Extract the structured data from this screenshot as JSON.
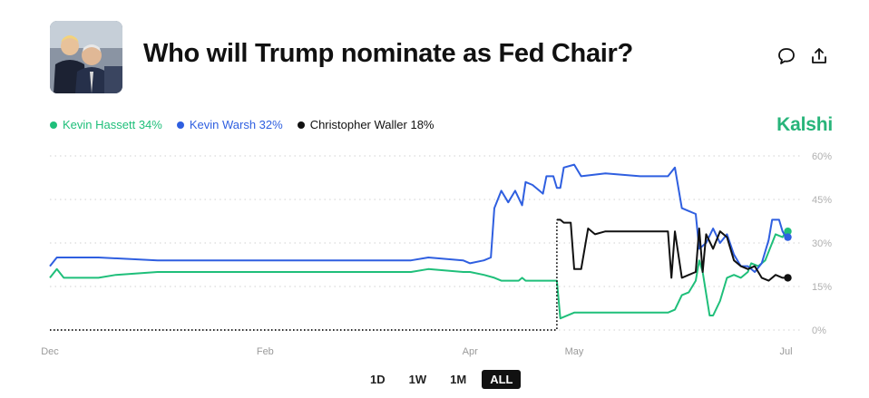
{
  "header": {
    "title": "Who will Trump nominate as Fed Chair?",
    "icons": [
      "comment-icon",
      "share-icon"
    ]
  },
  "brand": "Kalshi",
  "legend": [
    {
      "label": "Kevin Hassett 34%",
      "color": "#1fbf7a"
    },
    {
      "label": "Kevin Warsh 32%",
      "color": "#2f5fe0"
    },
    {
      "label": "Christopher Waller 18%",
      "color": "#111111"
    }
  ],
  "range_tabs": [
    "1D",
    "1W",
    "1M",
    "ALL"
  ],
  "active_range": "ALL",
  "chart_data": {
    "type": "line",
    "x_axis": {
      "range": [
        "2024-12-01",
        "2025-07-04"
      ],
      "tick_labels": [
        "Dec",
        "Feb",
        "Apr",
        "May",
        "Jul"
      ],
      "tick_dates": [
        "2024-12-01",
        "2025-02-01",
        "2025-04-01",
        "2025-05-01",
        "2025-07-01"
      ]
    },
    "y_axis": {
      "range": [
        0,
        60
      ],
      "ticks": [
        0,
        15,
        30,
        45,
        60
      ],
      "tick_labels": [
        "0%",
        "15%",
        "30%",
        "45%",
        "60%"
      ],
      "position": "right"
    },
    "grid": "horizontal-dotted",
    "series": [
      {
        "name": "Kevin Hassett",
        "color": "#1fbf7a",
        "end_value": 34,
        "points": [
          [
            "2024-12-01",
            18
          ],
          [
            "2024-12-03",
            21
          ],
          [
            "2024-12-05",
            18
          ],
          [
            "2024-12-15",
            18
          ],
          [
            "2024-12-20",
            19
          ],
          [
            "2025-01-01",
            20
          ],
          [
            "2025-01-20",
            20
          ],
          [
            "2025-02-01",
            20
          ],
          [
            "2025-02-20",
            20
          ],
          [
            "2025-03-01",
            20
          ],
          [
            "2025-03-15",
            20
          ],
          [
            "2025-03-20",
            21
          ],
          [
            "2025-03-30",
            20
          ],
          [
            "2025-04-01",
            20
          ],
          [
            "2025-04-05",
            19
          ],
          [
            "2025-04-08",
            18
          ],
          [
            "2025-04-10",
            17
          ],
          [
            "2025-04-15",
            17
          ],
          [
            "2025-04-16",
            18
          ],
          [
            "2025-04-17",
            17
          ],
          [
            "2025-04-25",
            17
          ],
          [
            "2025-04-26",
            17
          ],
          [
            "2025-04-27",
            4
          ],
          [
            "2025-05-01",
            6
          ],
          [
            "2025-05-10",
            6
          ],
          [
            "2025-05-20",
            6
          ],
          [
            "2025-05-28",
            6
          ],
          [
            "2025-05-30",
            7
          ],
          [
            "2025-06-01",
            12
          ],
          [
            "2025-06-03",
            13
          ],
          [
            "2025-06-05",
            17
          ],
          [
            "2025-06-06",
            24
          ],
          [
            "2025-06-07",
            20
          ],
          [
            "2025-06-09",
            5
          ],
          [
            "2025-06-10",
            5
          ],
          [
            "2025-06-12",
            10
          ],
          [
            "2025-06-14",
            18
          ],
          [
            "2025-06-16",
            19
          ],
          [
            "2025-06-18",
            18
          ],
          [
            "2025-06-20",
            20
          ],
          [
            "2025-06-21",
            23
          ],
          [
            "2025-06-23",
            22
          ],
          [
            "2025-06-25",
            24
          ],
          [
            "2025-06-27",
            30
          ],
          [
            "2025-06-28",
            33
          ],
          [
            "2025-06-30",
            32
          ],
          [
            "2025-07-01",
            34
          ]
        ]
      },
      {
        "name": "Kevin Warsh",
        "color": "#2f5fe0",
        "end_value": 32,
        "points": [
          [
            "2024-12-01",
            22
          ],
          [
            "2024-12-03",
            25
          ],
          [
            "2024-12-15",
            25
          ],
          [
            "2025-01-01",
            24
          ],
          [
            "2025-01-20",
            24
          ],
          [
            "2025-02-01",
            24
          ],
          [
            "2025-02-20",
            24
          ],
          [
            "2025-03-01",
            24
          ],
          [
            "2025-03-15",
            24
          ],
          [
            "2025-03-20",
            25
          ],
          [
            "2025-03-30",
            24
          ],
          [
            "2025-04-01",
            23
          ],
          [
            "2025-04-05",
            24
          ],
          [
            "2025-04-07",
            25
          ],
          [
            "2025-04-08",
            42
          ],
          [
            "2025-04-10",
            48
          ],
          [
            "2025-04-12",
            44
          ],
          [
            "2025-04-14",
            48
          ],
          [
            "2025-04-16",
            43
          ],
          [
            "2025-04-17",
            51
          ],
          [
            "2025-04-19",
            50
          ],
          [
            "2025-04-21",
            48
          ],
          [
            "2025-04-22",
            47
          ],
          [
            "2025-04-23",
            53
          ],
          [
            "2025-04-25",
            53
          ],
          [
            "2025-04-26",
            49
          ],
          [
            "2025-04-27",
            49
          ],
          [
            "2025-04-28",
            56
          ],
          [
            "2025-05-01",
            57
          ],
          [
            "2025-05-03",
            53
          ],
          [
            "2025-05-10",
            54
          ],
          [
            "2025-05-20",
            53
          ],
          [
            "2025-05-28",
            53
          ],
          [
            "2025-05-30",
            56
          ],
          [
            "2025-06-01",
            42
          ],
          [
            "2025-06-03",
            41
          ],
          [
            "2025-06-05",
            40
          ],
          [
            "2025-06-06",
            28
          ],
          [
            "2025-06-08",
            30
          ],
          [
            "2025-06-10",
            35
          ],
          [
            "2025-06-12",
            30
          ],
          [
            "2025-06-14",
            33
          ],
          [
            "2025-06-16",
            26
          ],
          [
            "2025-06-18",
            22
          ],
          [
            "2025-06-20",
            22
          ],
          [
            "2025-06-22",
            20
          ],
          [
            "2025-06-24",
            23
          ],
          [
            "2025-06-26",
            31
          ],
          [
            "2025-06-27",
            38
          ],
          [
            "2025-06-29",
            38
          ],
          [
            "2025-06-30",
            34
          ],
          [
            "2025-07-01",
            32
          ]
        ]
      },
      {
        "name": "Christopher Waller",
        "color": "#111111",
        "end_value": 18,
        "dotted_segment_end": "2025-04-26",
        "points": [
          [
            "2024-12-01",
            0
          ],
          [
            "2025-04-26",
            0
          ],
          [
            "2025-04-26",
            38
          ],
          [
            "2025-04-27",
            38
          ],
          [
            "2025-04-28",
            37
          ],
          [
            "2025-04-30",
            37
          ],
          [
            "2025-05-01",
            21
          ],
          [
            "2025-05-03",
            21
          ],
          [
            "2025-05-05",
            35
          ],
          [
            "2025-05-07",
            33
          ],
          [
            "2025-05-10",
            34
          ],
          [
            "2025-05-20",
            34
          ],
          [
            "2025-05-28",
            34
          ],
          [
            "2025-05-29",
            18
          ],
          [
            "2025-05-30",
            34
          ],
          [
            "2025-06-01",
            18
          ],
          [
            "2025-06-03",
            19
          ],
          [
            "2025-06-05",
            20
          ],
          [
            "2025-06-06",
            35
          ],
          [
            "2025-06-07",
            20
          ],
          [
            "2025-06-08",
            33
          ],
          [
            "2025-06-10",
            28
          ],
          [
            "2025-06-12",
            34
          ],
          [
            "2025-06-14",
            32
          ],
          [
            "2025-06-16",
            24
          ],
          [
            "2025-06-18",
            22
          ],
          [
            "2025-06-20",
            21
          ],
          [
            "2025-06-22",
            22
          ],
          [
            "2025-06-24",
            18
          ],
          [
            "2025-06-26",
            17
          ],
          [
            "2025-06-28",
            19
          ],
          [
            "2025-06-30",
            18
          ],
          [
            "2025-07-01",
            18
          ]
        ]
      }
    ]
  }
}
